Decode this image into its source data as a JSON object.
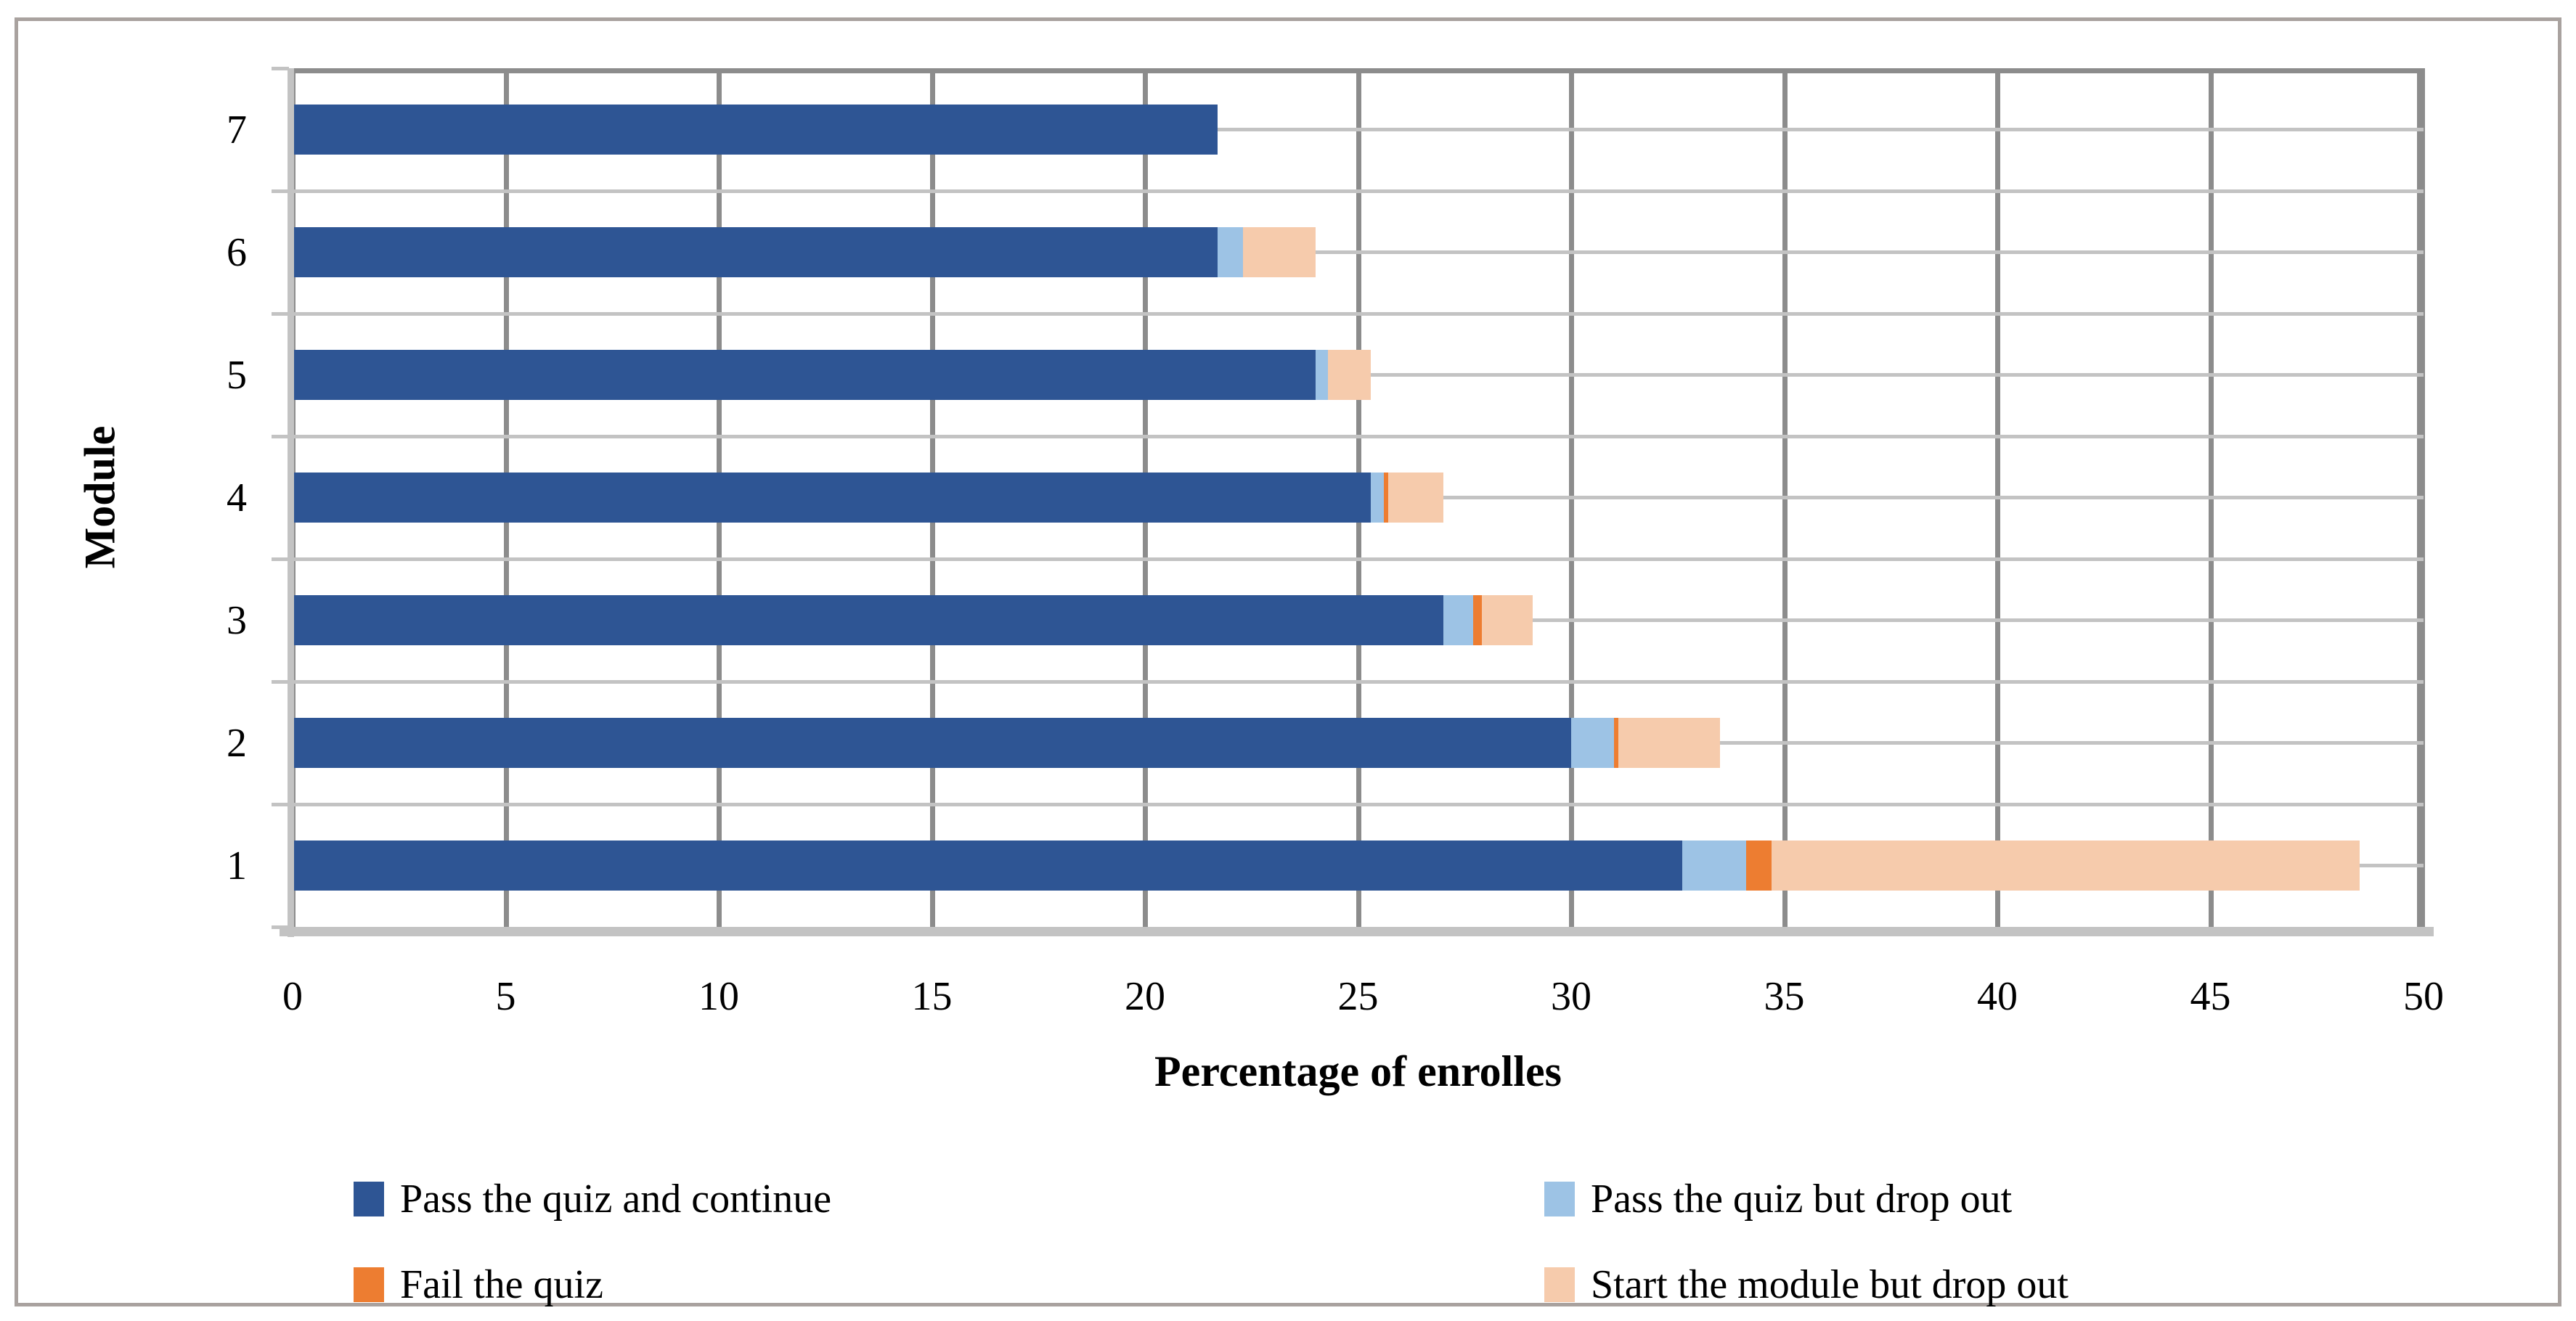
{
  "figure": {
    "background": "#FFFFFF",
    "border_color": "#A9A29F"
  },
  "chart_data": {
    "type": "bar",
    "orientation": "horizontal",
    "stacked": true,
    "xlabel": "Percentage of enrolles",
    "ylabel": "Module",
    "xlim": [
      0,
      50
    ],
    "x_ticks": [
      0,
      5,
      10,
      15,
      20,
      25,
      30,
      35,
      40,
      45,
      50
    ],
    "categories_top_to_bottom": [
      "7",
      "6",
      "5",
      "4",
      "3",
      "2",
      "1"
    ],
    "series": [
      {
        "name": "Pass the quiz and continue",
        "color": "#2E5594",
        "values": [
          21.7,
          21.7,
          24.0,
          25.3,
          27.0,
          30.0,
          32.6
        ]
      },
      {
        "name": "Pass the quiz but drop out",
        "color": "#9DC3E5",
        "values": [
          0,
          0.6,
          0.3,
          0.3,
          0.7,
          1.0,
          1.5
        ]
      },
      {
        "name": "Fail the quiz",
        "color": "#ED7D31",
        "values": [
          0,
          0,
          0,
          0.1,
          0.2,
          0.1,
          0.6
        ]
      },
      {
        "name": "Start the module but drop out",
        "color": "#F6CBAC",
        "values": [
          0,
          1.7,
          1.0,
          1.3,
          1.2,
          2.4,
          13.8
        ]
      }
    ],
    "totals_top_to_bottom": [
      21.7,
      24.0,
      25.3,
      27.0,
      29.1,
      33.5,
      48.5
    ],
    "grid": {
      "vertical_color": "#8C8C8C",
      "horizontal_color": "#C3C3C3",
      "axis_color": "#C3C3C3"
    },
    "legend": {
      "position": "bottom",
      "columns": 2,
      "rows": 2
    }
  }
}
